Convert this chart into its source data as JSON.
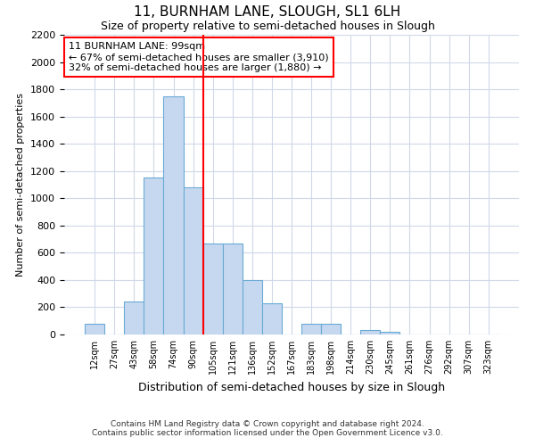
{
  "title": "11, BURNHAM LANE, SLOUGH, SL1 6LH",
  "subtitle": "Size of property relative to semi-detached houses in Slough",
  "xlabel": "Distribution of semi-detached houses by size in Slough",
  "ylabel": "Number of semi-detached properties",
  "categories": [
    "12sqm",
    "27sqm",
    "43sqm",
    "58sqm",
    "74sqm",
    "90sqm",
    "105sqm",
    "121sqm",
    "136sqm",
    "152sqm",
    "167sqm",
    "183sqm",
    "198sqm",
    "214sqm",
    "230sqm",
    "245sqm",
    "261sqm",
    "276sqm",
    "292sqm",
    "307sqm",
    "323sqm"
  ],
  "values": [
    80,
    0,
    240,
    1150,
    1750,
    1080,
    670,
    670,
    400,
    230,
    0,
    80,
    80,
    0,
    35,
    20,
    0,
    0,
    0,
    0,
    0
  ],
  "bar_color": "#c5d8f0",
  "bar_edge_color": "#6aaad4",
  "vline_x_index": 6,
  "vline_color": "red",
  "annotation_text": "11 BURNHAM LANE: 99sqm\n← 67% of semi-detached houses are smaller (3,910)\n32% of semi-detached houses are larger (1,880) →",
  "annotation_box_color": "white",
  "annotation_box_edge": "red",
  "ylim": [
    0,
    2200
  ],
  "yticks": [
    0,
    200,
    400,
    600,
    800,
    1000,
    1200,
    1400,
    1600,
    1800,
    2000,
    2200
  ],
  "footer_line1": "Contains HM Land Registry data © Crown copyright and database right 2024.",
  "footer_line2": "Contains public sector information licensed under the Open Government Licence v3.0.",
  "bg_color": "#ffffff",
  "plot_bg_color": "#ffffff",
  "grid_color": "#d0d8e8"
}
